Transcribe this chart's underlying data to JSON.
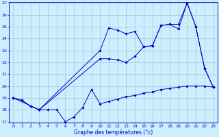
{
  "xlabel": "Graphe des températures (°c)",
  "bg_color": "#cceeff",
  "line_color": "#0000cc",
  "grid_color": "#99cccc",
  "ylim": [
    17,
    27
  ],
  "xlim": [
    -0.5,
    23.5
  ],
  "yticks": [
    17,
    18,
    19,
    20,
    21,
    22,
    23,
    24,
    25,
    26,
    27
  ],
  "xticks": [
    0,
    1,
    2,
    3,
    4,
    5,
    6,
    7,
    8,
    9,
    10,
    11,
    12,
    13,
    14,
    15,
    16,
    17,
    18,
    19,
    20,
    21,
    22,
    23
  ],
  "series1_x": [
    0,
    1,
    2,
    3,
    4,
    5,
    6,
    7,
    8,
    9,
    10,
    11,
    12,
    13,
    14,
    15,
    16,
    17,
    18,
    19,
    20,
    21,
    22,
    23
  ],
  "series1_y": [
    19.0,
    18.8,
    18.3,
    18.0,
    18.0,
    18.0,
    17.0,
    17.4,
    18.2,
    19.7,
    18.5,
    18.7,
    18.9,
    19.1,
    19.2,
    19.4,
    19.5,
    19.7,
    19.8,
    19.9,
    20.0,
    20.0,
    20.0,
    19.9
  ],
  "series2_x": [
    0,
    1,
    2,
    3,
    10,
    11,
    12,
    13,
    14,
    15,
    16,
    17,
    18,
    19,
    20,
    21,
    22,
    23
  ],
  "series2_y": [
    19.0,
    18.8,
    18.3,
    18.0,
    23.0,
    24.9,
    24.7,
    24.4,
    24.6,
    23.3,
    23.4,
    25.1,
    25.2,
    24.8,
    27.0,
    25.0,
    21.5,
    19.9
  ],
  "series3_x": [
    0,
    3,
    10,
    11,
    12,
    13,
    14,
    15,
    16,
    17,
    18,
    19,
    20,
    21,
    22,
    23
  ],
  "series3_y": [
    19.0,
    18.0,
    22.3,
    22.3,
    22.2,
    22.0,
    22.5,
    23.3,
    23.4,
    25.1,
    25.2,
    25.2,
    27.0,
    25.0,
    21.5,
    19.9
  ]
}
